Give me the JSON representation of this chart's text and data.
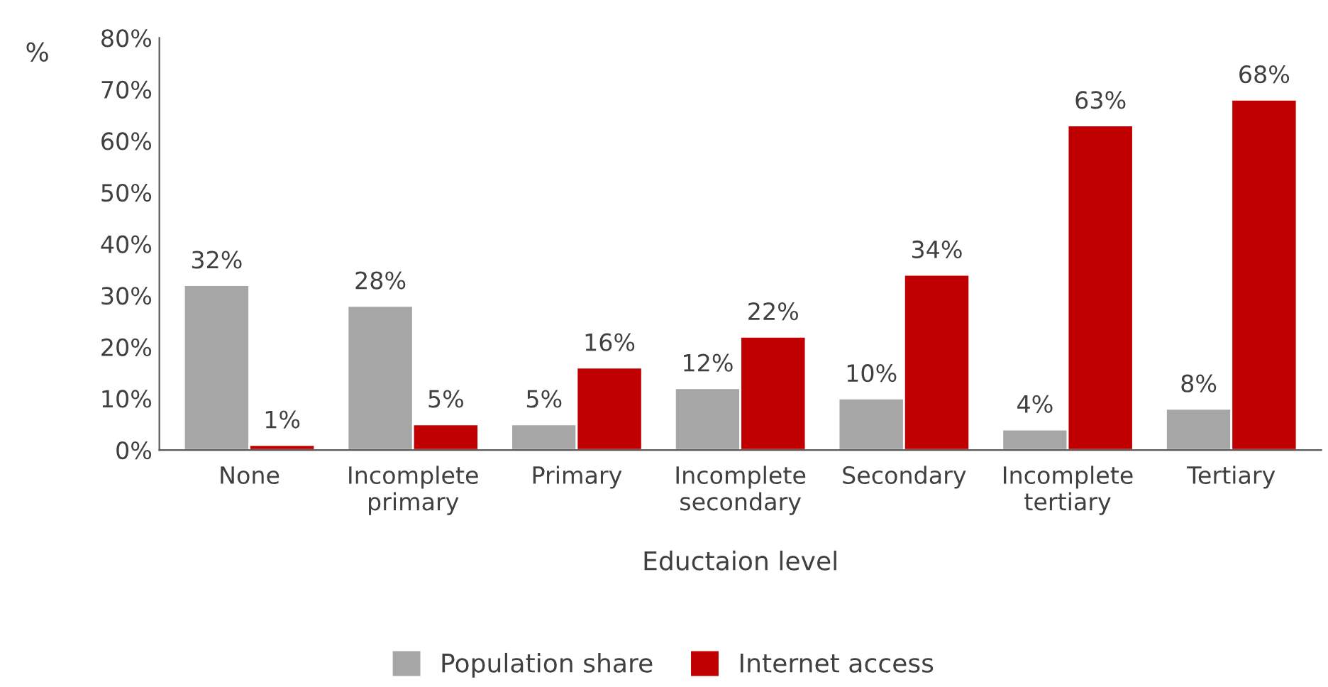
{
  "chart_data": {
    "type": "bar",
    "xlabel": "Eductaion level",
    "ylabel": "%",
    "categories": [
      "None",
      "Incomplete\nprimary",
      "Primary",
      "Incomplete\nsecondary",
      "Secondary",
      "Incomplete\ntertiary",
      "Tertiary"
    ],
    "series": [
      {
        "name": "Population share",
        "color": "#a6a6a6",
        "values": [
          32,
          28,
          5,
          12,
          10,
          4,
          8
        ],
        "value_labels": [
          "32%",
          "28%",
          "5%",
          "12%",
          "10%",
          "4%",
          "8%"
        ]
      },
      {
        "name": "Internet access",
        "color": "#c00000",
        "values": [
          1,
          5,
          16,
          22,
          34,
          63,
          68
        ],
        "value_labels": [
          "1%",
          "5%",
          "16%",
          "22%",
          "34%",
          "63%",
          "68%"
        ]
      }
    ],
    "ylim": [
      0,
      80
    ],
    "yticks": [
      {
        "value": 0,
        "label": "0%"
      },
      {
        "value": 10,
        "label": "10%"
      },
      {
        "value": 20,
        "label": "20%"
      },
      {
        "value": 30,
        "label": "30%"
      },
      {
        "value": 40,
        "label": "40%"
      },
      {
        "value": 50,
        "label": "50%"
      },
      {
        "value": 60,
        "label": "60%"
      },
      {
        "value": 70,
        "label": "70%"
      },
      {
        "value": 80,
        "label": "80%"
      }
    ],
    "grid": false,
    "legend": "bottom"
  }
}
